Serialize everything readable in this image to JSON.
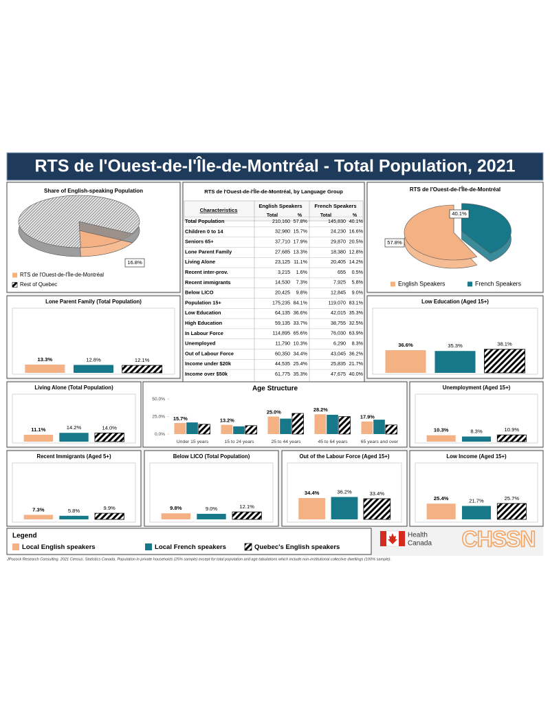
{
  "title": "RTS de l'Ouest-de-l'Île-de-Montréal - Total Population, 2021",
  "table": {
    "title": "RTS de l'Ouest-de-l'Île-de-Montréal, by Language Group",
    "header": [
      "Characteristics",
      "English Speakers",
      "French Speakers"
    ],
    "subheader": [
      "Total",
      "%",
      "Total",
      "%"
    ],
    "rows": [
      [
        "Total Population",
        "210,160",
        "57.8%",
        "145,830",
        "40.1%"
      ],
      [
        "Children 0 to 14",
        "32,980",
        "15.7%",
        "24,230",
        "16.6%"
      ],
      [
        "Seniors 65+",
        "37,710",
        "17.9%",
        "29,870",
        "20.5%"
      ],
      [
        "Lone Parent Family",
        "27,685",
        "13.3%",
        "18,380",
        "12.8%"
      ],
      [
        "Living Alone",
        "23,125",
        "11.1%",
        "20,405",
        "14.2%"
      ],
      [
        "Recent inter-prov.",
        "3,215",
        "1.6%",
        "655",
        "0.5%"
      ],
      [
        "Recent immigrants",
        "14,530",
        "7.3%",
        "7,925",
        "5.8%"
      ],
      [
        "Below LICO",
        "20,425",
        "9.8%",
        "12,845",
        "9.0%"
      ],
      [
        "Population 15+",
        "175,235",
        "84.1%",
        "119,070",
        "83.1%"
      ],
      [
        "Low Education",
        "64,135",
        "36.6%",
        "42,015",
        "35.3%"
      ],
      [
        "High Education",
        "59,135",
        "33.7%",
        "38,755",
        "32.5%"
      ],
      [
        "In Labour Force",
        "114,895",
        "65.6%",
        "76,030",
        "63.9%"
      ],
      [
        "Unemployed",
        "11,790",
        "10.3%",
        "6,290",
        "8.3%"
      ],
      [
        "Out of Labour Force",
        "60,350",
        "34.4%",
        "43,045",
        "36.2%"
      ],
      [
        "Income under $20k",
        "44,535",
        "25.4%",
        "25,835",
        "21.7%"
      ],
      [
        "Income over $50k",
        "61,775",
        "35.3%",
        "47,675",
        "40.0%"
      ]
    ]
  },
  "chart_data": [
    {
      "type": "pie",
      "title": "Share of English-speaking Population",
      "categories": [
        "RTS de l'Ouest-de-l'Île-de-Montréal",
        "Rest of Quebec"
      ],
      "values": [
        16.8,
        83.2
      ],
      "value_labels": [
        "16.8%",
        null
      ],
      "colors": [
        "#f4b183",
        "#d9d9d9"
      ],
      "patterns": [
        null,
        "hatch"
      ]
    },
    {
      "type": "pie",
      "title": "RTS de l'Ouest-de-l'Île-de-Montréal",
      "categories": [
        "English Speakers",
        "French Speakers"
      ],
      "values": [
        57.8,
        40.1
      ],
      "value_labels": [
        "57.8%",
        "40.1%"
      ],
      "colors": [
        "#f4b183",
        "#17788a"
      ],
      "patterns": [
        null,
        null
      ]
    },
    {
      "type": "bar",
      "title": "Lone Parent Family (Total Population)",
      "values": [
        13.3,
        12.8,
        12.1
      ],
      "value_labels": [
        "13.3%",
        "12.8%",
        "12.1%"
      ]
    },
    {
      "type": "bar",
      "title": "Low Education (Aged 15+)",
      "values": [
        36.6,
        35.3,
        38.1
      ],
      "value_labels": [
        "36.6%",
        "35.3%",
        "38.1%"
      ]
    },
    {
      "type": "bar",
      "title": "Living Alone (Total Population)",
      "values": [
        11.1,
        14.2,
        14.0
      ],
      "value_labels": [
        "11.1%",
        "14.2%",
        "14.0%"
      ]
    },
    {
      "type": "grouped-bar",
      "title": "Age Structure",
      "categories": [
        "Under 15 years",
        "15 to 24 years",
        "25 to 44 years",
        "45 to 64 years",
        "65 years and over"
      ],
      "series": [
        {
          "values": [
            15.7,
            13.2,
            25.0,
            28.2,
            17.9
          ],
          "value_labels": [
            "15.7%",
            "13.2%",
            "25.0%",
            "28.2%",
            "17.9%"
          ]
        },
        {
          "values": [
            16.6,
            11.0,
            22.0,
            27.5,
            20.5
          ]
        },
        {
          "values": [
            14.0,
            12.0,
            29.5,
            25.0,
            13.0
          ]
        }
      ],
      "ylim": [
        0,
        50
      ],
      "yticks": [
        {
          "value": 0,
          "label": "0.0%"
        },
        {
          "value": 25,
          "label": "25.0%"
        },
        {
          "value": 50,
          "label": "50.0%"
        }
      ]
    },
    {
      "type": "bar",
      "title": "Unemployment (Aged 15+)",
      "values": [
        10.3,
        8.3,
        10.9
      ],
      "value_labels": [
        "10.3%",
        "8.3%",
        "10.9%"
      ]
    },
    {
      "type": "bar",
      "title": "Recent Immigrants (Aged 5+)",
      "values": [
        7.3,
        5.8,
        9.9
      ],
      "value_labels": [
        "7.3%",
        "5.8%",
        "9.9%"
      ]
    },
    {
      "type": "bar",
      "title": "Below LICO (Total Population)",
      "values": [
        9.8,
        9.0,
        12.1
      ],
      "value_labels": [
        "9.8%",
        "9.0%",
        "12.1%"
      ]
    },
    {
      "type": "bar",
      "title": "Out of the Labour Force (Aged 15+)",
      "values": [
        34.4,
        36.2,
        33.4
      ],
      "value_labels": [
        "34.4%",
        "36.2%",
        "33.4%"
      ]
    },
    {
      "type": "bar",
      "title": "Low Income (Aged 15+)",
      "values": [
        25.4,
        21.7,
        25.7
      ],
      "value_labels": [
        "25.4%",
        "21.7%",
        "25.7%"
      ]
    }
  ],
  "legend": {
    "title": "Legend",
    "series": [
      {
        "name": "Local English speakers",
        "color": "#f4b183",
        "pattern": null
      },
      {
        "name": "Local French speakers",
        "color": "#17788a",
        "pattern": null
      },
      {
        "name": "Quebec's English speakers",
        "color": "#000000",
        "pattern": "hatch"
      }
    ]
  },
  "logos": {
    "health": [
      "Health",
      "Canada"
    ],
    "partner": "CHSSN"
  },
  "footnote": "JPocock Research Consulting. 2021 Census. Statistics Canada. Population in private households (25% sample) except for total population and age tabulations which include non-institutional collective dwellings (100% sample)."
}
